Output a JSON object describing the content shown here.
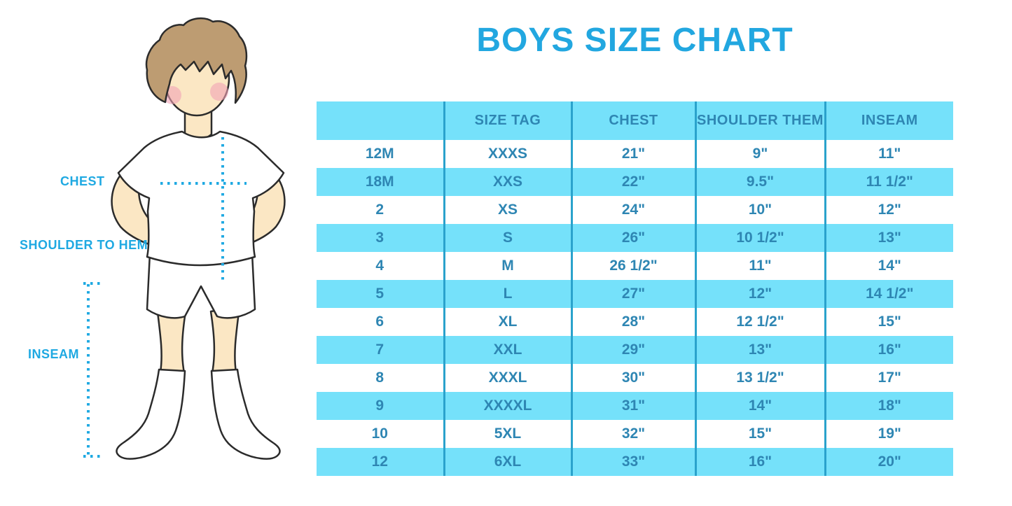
{
  "chart_data": {
    "type": "table",
    "title": "BOYS SIZE CHART",
    "headers": [
      "",
      "SIZE TAG",
      "CHEST",
      "SHOULDER THEM",
      "INSEAM"
    ],
    "rows": [
      [
        "12M",
        "XXXS",
        "21\"",
        "9\"",
        "11\""
      ],
      [
        "18M",
        "XXS",
        "22\"",
        "9.5\"",
        "11 1/2\""
      ],
      [
        "2",
        "XS",
        "24\"",
        "10\"",
        "12\""
      ],
      [
        "3",
        "S",
        "26\"",
        "10 1/2\"",
        "13\""
      ],
      [
        "4",
        "M",
        "26 1/2\"",
        "11\"",
        "14\""
      ],
      [
        "5",
        "L",
        "27\"",
        "12\"",
        "14 1/2\""
      ],
      [
        "6",
        "XL",
        "28\"",
        "12 1/2\"",
        "15\""
      ],
      [
        "7",
        "XXL",
        "29\"",
        "13\"",
        "16\""
      ],
      [
        "8",
        "XXXL",
        "30\"",
        "13 1/2\"",
        "17\""
      ],
      [
        "9",
        "XXXXL",
        "31\"",
        "14\"",
        "18\""
      ],
      [
        "10",
        "5XL",
        "32\"",
        "15\"",
        "19\""
      ],
      [
        "12",
        "6XL",
        "33\"",
        "16\"",
        "20\""
      ]
    ],
    "layout": {
      "stripe_pattern": "header cyan, then rows alternate white/cyan starting white"
    }
  },
  "figure": {
    "labels": {
      "chest": "CHEST",
      "shoulder_to_hem": "SHOULDER TO HEM",
      "inseam": "INSEAM"
    }
  },
  "colors": {
    "accent_blue": "#22A7E0",
    "stripe_cyan": "#75E1FA",
    "grid_line": "#2AA2CC",
    "cell_text": "#2E86B3",
    "dotted_line": "#1FA9E2",
    "hair": "#BD9C72",
    "skin": "#FBE7C4",
    "blush": "#F2A3B6"
  }
}
